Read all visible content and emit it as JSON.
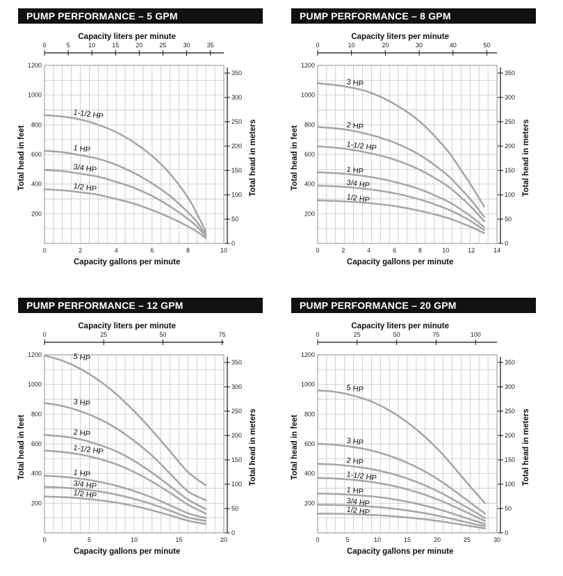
{
  "chart_data": [
    {
      "type": "line",
      "title": "PUMP PERFORMANCE – 5 GPM",
      "xlabel": "Capacity gallons per minute",
      "x2label": "Capacity liters per minute",
      "ylabel": "Total head in feet",
      "y2label": "Total head in meters",
      "xlim": [
        0,
        10
      ],
      "ylim": [
        0,
        1200
      ],
      "x2lim": [
        0,
        37.85
      ],
      "y2lim": [
        0,
        365.76
      ],
      "xticks": [
        "0",
        "2",
        "4",
        "6",
        "8",
        "10"
      ],
      "x2ticks": [
        "0",
        "5",
        "10",
        "15",
        "20",
        "25",
        "30",
        "35"
      ],
      "yticks": [
        "200",
        "400",
        "600",
        "800",
        "1000",
        "1200"
      ],
      "y2ticks": [
        "0",
        "50",
        "100",
        "150",
        "200",
        "250",
        "300",
        "350"
      ],
      "grid": true,
      "series": [
        {
          "name": "1-1/2 HP",
          "x": [
            0,
            1,
            2,
            3,
            4,
            5,
            6,
            7,
            8,
            8.5,
            9
          ],
          "y": [
            865,
            855,
            835,
            800,
            750,
            680,
            590,
            470,
            310,
            200,
            80
          ]
        },
        {
          "name": "1 HP",
          "x": [
            0,
            1,
            2,
            3,
            4,
            5,
            6,
            7,
            8,
            8.5,
            9
          ],
          "y": [
            625,
            615,
            595,
            570,
            530,
            475,
            405,
            320,
            210,
            145,
            60
          ]
        },
        {
          "name": "3/4 HP",
          "x": [
            0,
            1,
            2,
            3,
            4,
            5,
            6,
            7,
            8,
            8.5,
            9
          ],
          "y": [
            495,
            488,
            470,
            450,
            415,
            375,
            320,
            250,
            165,
            115,
            50
          ]
        },
        {
          "name": "1/2 HP",
          "x": [
            0,
            1,
            2,
            3,
            4,
            5,
            6,
            7,
            8,
            8.5,
            9
          ],
          "y": [
            365,
            358,
            345,
            328,
            300,
            268,
            225,
            175,
            115,
            80,
            35
          ]
        }
      ]
    },
    {
      "type": "line",
      "title": "PUMP PERFORMANCE – 8 GPM",
      "xlabel": "Capacity gallons per minute",
      "x2label": "Capacity liters per minute",
      "ylabel": "Total head in feet",
      "y2label": "Total head in meters",
      "xlim": [
        0,
        14
      ],
      "ylim": [
        0,
        1200
      ],
      "x2lim": [
        0,
        53
      ],
      "y2lim": [
        0,
        365.76
      ],
      "xticks": [
        "0",
        "2",
        "4",
        "6",
        "8",
        "10",
        "12",
        "14"
      ],
      "x2ticks": [
        "0",
        "10",
        "20",
        "30",
        "40",
        "50"
      ],
      "yticks": [
        "200",
        "400",
        "600",
        "800",
        "1000",
        "1200"
      ],
      "y2ticks": [
        "0",
        "50",
        "100",
        "150",
        "200",
        "250",
        "300",
        "350"
      ],
      "grid": true,
      "series": [
        {
          "name": "3 HP",
          "x": [
            0,
            2,
            4,
            6,
            8,
            10,
            11,
            12,
            13
          ],
          "y": [
            1080,
            1060,
            1020,
            940,
            820,
            640,
            520,
            390,
            250
          ]
        },
        {
          "name": "2 HP",
          "x": [
            0,
            2,
            4,
            6,
            8,
            10,
            11,
            12,
            13
          ],
          "y": [
            785,
            770,
            735,
            680,
            595,
            470,
            385,
            290,
            180
          ]
        },
        {
          "name": "1-1/2 HP",
          "x": [
            0,
            2,
            4,
            6,
            8,
            10,
            11,
            12,
            13
          ],
          "y": [
            655,
            640,
            610,
            565,
            495,
            395,
            325,
            245,
            150
          ]
        },
        {
          "name": "1 HP",
          "x": [
            0,
            2,
            4,
            6,
            8,
            10,
            11,
            12,
            13
          ],
          "y": [
            480,
            470,
            450,
            415,
            365,
            290,
            240,
            180,
            110
          ]
        },
        {
          "name": "3/4 HP",
          "x": [
            0,
            2,
            4,
            6,
            8,
            10,
            11,
            12,
            13
          ],
          "y": [
            390,
            382,
            365,
            338,
            296,
            236,
            196,
            148,
            90
          ]
        },
        {
          "name": "1/2 HP",
          "x": [
            0,
            2,
            4,
            6,
            8,
            10,
            11,
            12,
            13
          ],
          "y": [
            290,
            284,
            272,
            252,
            220,
            176,
            146,
            110,
            70
          ]
        }
      ]
    },
    {
      "type": "line",
      "title": "PUMP PERFORMANCE – 12 GPM",
      "xlabel": "Capacity gallons per minute",
      "x2label": "Capacity liters per minute",
      "ylabel": "Total head in feet",
      "y2label": "Total head in meters",
      "xlim": [
        0,
        20
      ],
      "ylim": [
        0,
        1200
      ],
      "x2lim": [
        0,
        75.7
      ],
      "y2lim": [
        0,
        365.76
      ],
      "xticks": [
        "0",
        "5",
        "10",
        "15",
        "20"
      ],
      "x2ticks": [
        "0",
        "25",
        "50",
        "75"
      ],
      "yticks": [
        "200",
        "400",
        "600",
        "800",
        "1000",
        "1200"
      ],
      "y2ticks": [
        "0",
        "50",
        "100",
        "150",
        "200",
        "250",
        "300",
        "350"
      ],
      "grid": true,
      "series": [
        {
          "name": "5 HP",
          "x": [
            0,
            2,
            4,
            6,
            8,
            10,
            12,
            14,
            16,
            18
          ],
          "y": [
            1195,
            1160,
            1105,
            1030,
            935,
            820,
            690,
            550,
            410,
            320
          ]
        },
        {
          "name": "3 HP",
          "x": [
            0,
            2,
            4,
            6,
            8,
            10,
            12,
            14,
            16,
            18
          ],
          "y": [
            875,
            855,
            820,
            770,
            705,
            620,
            520,
            400,
            280,
            220
          ]
        },
        {
          "name": "2 HP",
          "x": [
            0,
            2,
            4,
            6,
            8,
            10,
            12,
            14,
            16,
            18
          ],
          "y": [
            660,
            650,
            630,
            595,
            550,
            485,
            405,
            315,
            225,
            160
          ]
        },
        {
          "name": "1-1/2 HP",
          "x": [
            0,
            2,
            4,
            6,
            8,
            10,
            12,
            14,
            16,
            18
          ],
          "y": [
            555,
            545,
            528,
            500,
            462,
            410,
            345,
            270,
            190,
            130
          ]
        },
        {
          "name": "1 HP",
          "x": [
            0,
            2,
            4,
            6,
            8,
            10,
            12,
            14,
            16,
            18
          ],
          "y": [
            385,
            378,
            365,
            345,
            318,
            282,
            238,
            186,
            132,
            100
          ]
        },
        {
          "name": "3/4 HP",
          "x": [
            0,
            2,
            4,
            6,
            8,
            10,
            12,
            14,
            16,
            18
          ],
          "y": [
            310,
            305,
            295,
            280,
            258,
            229,
            193,
            150,
            105,
            80
          ]
        },
        {
          "name": "1/2 HP",
          "x": [
            0,
            2,
            4,
            6,
            8,
            10,
            12,
            14,
            16,
            18
          ],
          "y": [
            245,
            241,
            233,
            221,
            204,
            181,
            152,
            118,
            82,
            60
          ]
        }
      ]
    },
    {
      "type": "line",
      "title": "PUMP PERFORMANCE – 20 GPM",
      "xlabel": "Capacity gallons per minute",
      "x2label": "Capacity liters per minute",
      "ylabel": "Total head in feet",
      "y2label": "Total head in meters",
      "xlim": [
        0,
        30
      ],
      "ylim": [
        0,
        1200
      ],
      "x2lim": [
        0,
        113.55
      ],
      "y2lim": [
        0,
        365.76
      ],
      "xticks": [
        "0",
        "5",
        "10",
        "15",
        "20",
        "25",
        "30"
      ],
      "x2ticks": [
        "0",
        "25",
        "50",
        "75",
        "100"
      ],
      "yticks": [
        "200",
        "400",
        "600",
        "800",
        "1000",
        "1200"
      ],
      "y2ticks": [
        "0",
        "50",
        "100",
        "150",
        "200",
        "250",
        "300",
        "350"
      ],
      "grid": true,
      "series": [
        {
          "name": "5 HP",
          "x": [
            0,
            3,
            6,
            9,
            12,
            15,
            18,
            21,
            24,
            26,
            28
          ],
          "y": [
            960,
            950,
            925,
            885,
            825,
            745,
            645,
            525,
            385,
            290,
            200
          ]
        },
        {
          "name": "3 HP",
          "x": [
            0,
            3,
            6,
            9,
            12,
            15,
            18,
            21,
            24,
            26,
            28
          ],
          "y": [
            600,
            593,
            578,
            555,
            520,
            472,
            412,
            338,
            250,
            190,
            130
          ]
        },
        {
          "name": "2 HP",
          "x": [
            0,
            3,
            6,
            9,
            12,
            15,
            18,
            21,
            24,
            26,
            28
          ],
          "y": [
            465,
            460,
            448,
            430,
            403,
            366,
            319,
            262,
            194,
            148,
            100
          ]
        },
        {
          "name": "1-1/2 HP",
          "x": [
            0,
            3,
            6,
            9,
            12,
            15,
            18,
            21,
            24,
            26,
            28
          ],
          "y": [
            370,
            366,
            357,
            343,
            322,
            293,
            256,
            210,
            156,
            118,
            80
          ]
        },
        {
          "name": "1 HP",
          "x": [
            0,
            3,
            6,
            9,
            12,
            15,
            18,
            21,
            24,
            26,
            28
          ],
          "y": [
            265,
            262,
            256,
            246,
            231,
            210,
            183,
            150,
            111,
            85,
            60
          ]
        },
        {
          "name": "3/4 HP",
          "x": [
            0,
            3,
            6,
            9,
            12,
            15,
            18,
            21,
            24,
            26,
            28
          ],
          "y": [
            190,
            188,
            184,
            177,
            166,
            151,
            132,
            108,
            80,
            61,
            45
          ]
        },
        {
          "name": "1/2 HP",
          "x": [
            0,
            3,
            6,
            9,
            12,
            15,
            18,
            21,
            24,
            26,
            28
          ],
          "y": [
            130,
            129,
            126,
            121,
            114,
            104,
            91,
            75,
            56,
            43,
            30
          ]
        }
      ]
    }
  ],
  "colors": {
    "curve": "#a7a7a7",
    "grid": "#bdbdbd",
    "axis": "#111111",
    "title_bg": "#111111",
    "title_fg": "#ffffff"
  }
}
